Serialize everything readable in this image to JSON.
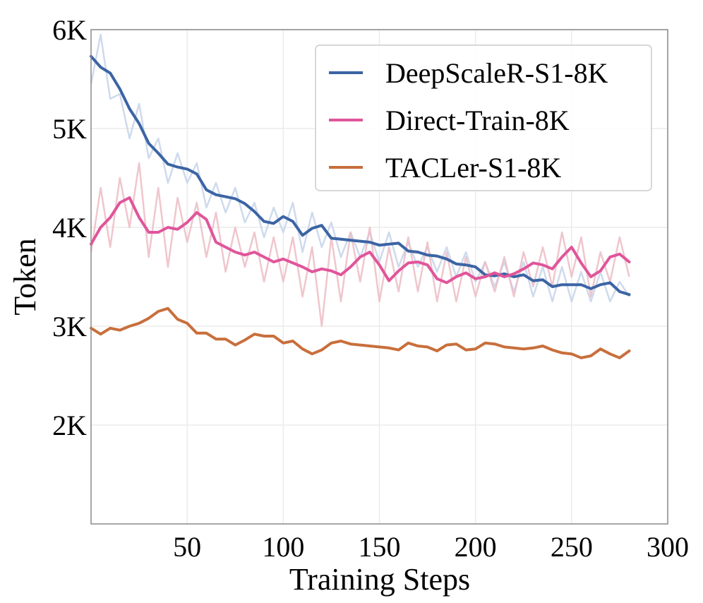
{
  "chart_data": {
    "type": "line",
    "title": "",
    "xlabel": "Training Steps",
    "ylabel": "Token",
    "xlim": [
      0,
      300
    ],
    "ylim": [
      1000,
      6000
    ],
    "xticks": [
      50,
      100,
      150,
      200,
      250,
      300
    ],
    "xtick_labels": [
      "50",
      "100",
      "150",
      "200",
      "250",
      "300"
    ],
    "yticks": [
      2000,
      3000,
      4000,
      5000,
      6000
    ],
    "ytick_labels": [
      "2K",
      "3K",
      "4K",
      "5K",
      "6K"
    ],
    "grid": true,
    "legend_position": "top-right",
    "series": [
      {
        "name": "DeepScaleR-S1-8K",
        "color": "#3b64a4",
        "raw_color": "#c6d3ea",
        "x": [
          0,
          5,
          10,
          15,
          20,
          25,
          30,
          35,
          40,
          45,
          50,
          55,
          60,
          65,
          70,
          75,
          80,
          85,
          90,
          95,
          100,
          105,
          110,
          115,
          120,
          125,
          130,
          135,
          140,
          145,
          150,
          155,
          160,
          165,
          170,
          175,
          180,
          185,
          190,
          195,
          200,
          205,
          210,
          215,
          220,
          225,
          230,
          235,
          240,
          245,
          250,
          255,
          260,
          265,
          270,
          275,
          280
        ],
        "values": [
          5730,
          5620,
          5560,
          5400,
          5200,
          5050,
          4850,
          4750,
          4640,
          4610,
          4590,
          4540,
          4380,
          4330,
          4310,
          4290,
          4240,
          4160,
          4060,
          4040,
          4110,
          4060,
          3920,
          3990,
          4020,
          3890,
          3880,
          3870,
          3860,
          3850,
          3820,
          3830,
          3840,
          3760,
          3750,
          3720,
          3710,
          3680,
          3630,
          3620,
          3600,
          3520,
          3510,
          3530,
          3500,
          3520,
          3460,
          3470,
          3400,
          3420,
          3420,
          3420,
          3380,
          3420,
          3440,
          3350,
          3320
        ],
        "raw": [
          5450,
          5950,
          5300,
          5350,
          4900,
          5250,
          4700,
          4900,
          4450,
          4750,
          4450,
          4650,
          4200,
          4450,
          4150,
          4400,
          4050,
          4250,
          3900,
          4200,
          3950,
          4250,
          3750,
          4150,
          3800,
          4050,
          3700,
          3950,
          3700,
          3950,
          3650,
          3950,
          3600,
          3850,
          3600,
          3800,
          3550,
          3800,
          3500,
          3750,
          3450,
          3650,
          3400,
          3650,
          3350,
          3650,
          3300,
          3600,
          3250,
          3600,
          3250,
          3550,
          3250,
          3550,
          3250,
          3450,
          3300
        ]
      },
      {
        "name": "Direct-Train-8K",
        "color": "#e0559a",
        "raw_color": "#ecbcc4",
        "x": [
          0,
          5,
          10,
          15,
          20,
          25,
          30,
          35,
          40,
          45,
          50,
          55,
          60,
          65,
          70,
          75,
          80,
          85,
          90,
          95,
          100,
          105,
          110,
          115,
          120,
          125,
          130,
          135,
          140,
          145,
          150,
          155,
          160,
          165,
          170,
          175,
          180,
          185,
          190,
          195,
          200,
          205,
          210,
          215,
          220,
          225,
          230,
          235,
          240,
          245,
          250,
          255,
          260,
          265,
          270,
          275,
          280
        ],
        "values": [
          3830,
          4000,
          4100,
          4250,
          4300,
          4100,
          3950,
          3950,
          4000,
          3980,
          4050,
          4150,
          4080,
          3850,
          3800,
          3750,
          3720,
          3750,
          3700,
          3650,
          3680,
          3640,
          3600,
          3550,
          3580,
          3560,
          3520,
          3600,
          3700,
          3750,
          3620,
          3460,
          3560,
          3640,
          3650,
          3620,
          3480,
          3440,
          3500,
          3540,
          3480,
          3500,
          3540,
          3500,
          3530,
          3580,
          3640,
          3620,
          3580,
          3700,
          3800,
          3640,
          3500,
          3560,
          3700,
          3730,
          3650
        ],
        "raw": [
          3750,
          4400,
          3800,
          4500,
          4000,
          4650,
          3700,
          4400,
          3600,
          4300,
          3850,
          4250,
          3700,
          4150,
          3550,
          4000,
          3600,
          3950,
          3450,
          3900,
          3450,
          3900,
          3300,
          3800,
          3000,
          3900,
          3250,
          3950,
          3450,
          4000,
          3250,
          3800,
          3350,
          3900,
          3350,
          3850,
          3250,
          3750,
          3250,
          3700,
          3300,
          3650,
          3350,
          3700,
          3300,
          3750,
          3400,
          3800,
          3400,
          3950,
          3500,
          3900,
          3300,
          3750,
          3450,
          3900,
          3500
        ]
      },
      {
        "name": "TACLer-S1-8K",
        "color": "#c86f3c",
        "x": [
          0,
          5,
          10,
          15,
          20,
          25,
          30,
          35,
          40,
          45,
          50,
          55,
          60,
          65,
          70,
          75,
          80,
          85,
          90,
          95,
          100,
          105,
          110,
          115,
          120,
          125,
          130,
          135,
          140,
          145,
          150,
          155,
          160,
          165,
          170,
          175,
          180,
          185,
          190,
          195,
          200,
          205,
          210,
          215,
          220,
          225,
          230,
          235,
          240,
          245,
          250,
          255,
          260,
          265,
          270,
          275,
          280
        ],
        "values": [
          2980,
          2920,
          2980,
          2960,
          3000,
          3030,
          3080,
          3150,
          3180,
          3070,
          3030,
          2930,
          2930,
          2870,
          2870,
          2810,
          2860,
          2920,
          2900,
          2900,
          2830,
          2850,
          2770,
          2720,
          2760,
          2830,
          2850,
          2820,
          2810,
          2800,
          2790,
          2780,
          2760,
          2830,
          2800,
          2790,
          2750,
          2810,
          2820,
          2760,
          2770,
          2830,
          2820,
          2790,
          2780,
          2770,
          2780,
          2800,
          2760,
          2730,
          2720,
          2680,
          2700,
          2770,
          2720,
          2680,
          2750
        ]
      }
    ]
  }
}
